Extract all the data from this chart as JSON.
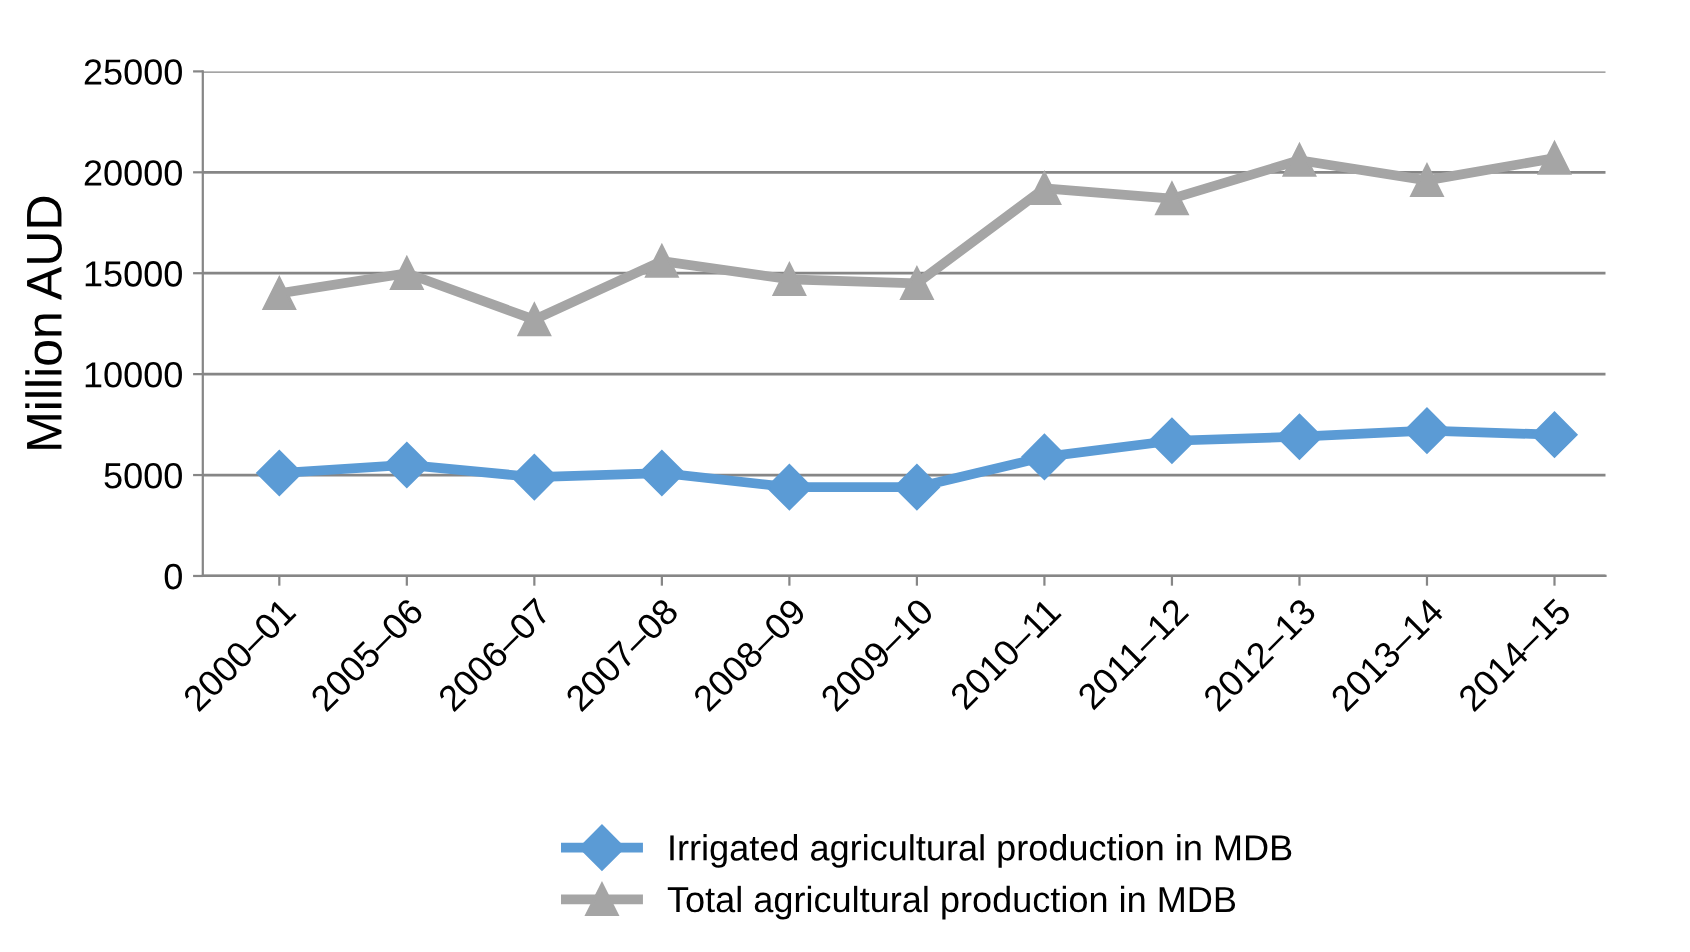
{
  "chart_data": {
    "type": "line",
    "ylabel": "Million AUD",
    "categories": [
      "2000–01",
      "2005–06",
      "2006–07",
      "2007–08",
      "2008–09",
      "2009–10",
      "2010–11",
      "2011–12",
      "2012–13",
      "2013–14",
      "2014–15"
    ],
    "series": [
      {
        "name": "Irrigated agricultural production in MDB",
        "color": "#5b9bd5",
        "marker": "diamond",
        "values": [
          5100,
          5500,
          4900,
          5100,
          4400,
          4400,
          5900,
          6700,
          6900,
          7200,
          7000
        ]
      },
      {
        "name": "Total agricultural production in MDB",
        "color": "#a5a5a5",
        "marker": "triangle",
        "values": [
          14000,
          15000,
          12700,
          15600,
          14700,
          14500,
          19200,
          18700,
          20600,
          19600,
          20700
        ]
      }
    ],
    "ylim": [
      0,
      25000
    ],
    "yticks": [
      0,
      5000,
      10000,
      15000,
      20000,
      25000
    ],
    "grid": "y",
    "legend": "bottom",
    "line_style": "solid"
  }
}
